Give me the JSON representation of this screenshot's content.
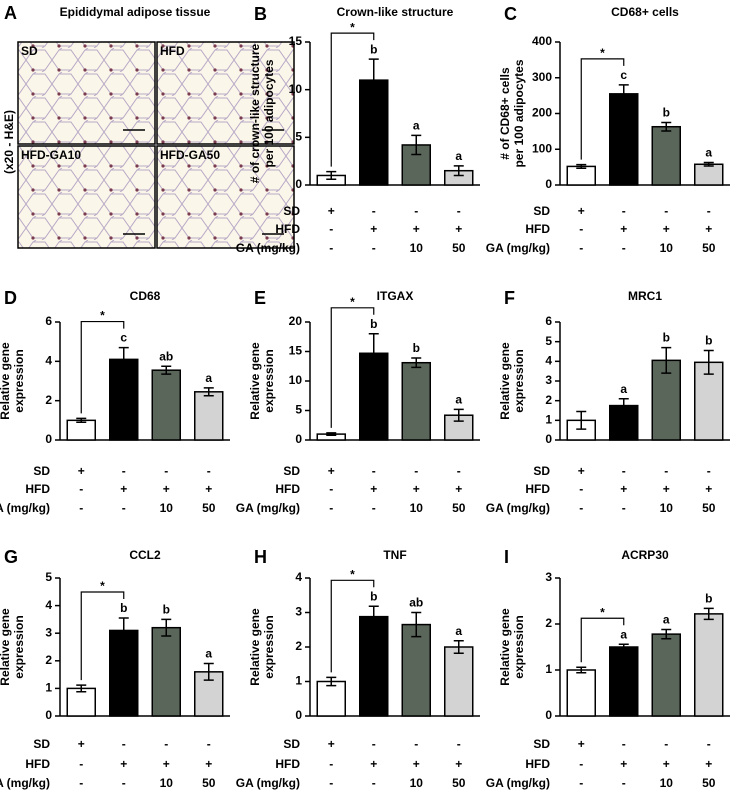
{
  "panel_a": {
    "label": "A",
    "title": "Epididymal adipose tissue",
    "side_label": "(x20 - H&E)",
    "images": [
      "SD",
      "HFD",
      "HFD-GA10",
      "HFD-GA50"
    ]
  },
  "chart_data": [
    {
      "type": "bar",
      "panel": "B",
      "title": "Crown-like structure",
      "ylabel": [
        "# of crown-like structure",
        "per 100 adipocytes"
      ],
      "ylim": [
        0,
        15
      ],
      "yticks": [
        0,
        5,
        10,
        15
      ],
      "values": [
        1,
        11,
        4.2,
        1.5
      ],
      "errors": [
        0.4,
        2.2,
        1,
        0.5
      ],
      "letters": [
        null,
        "b",
        "a",
        "a"
      ],
      "significance": "*",
      "colors": [
        "#ffffff",
        "#000000",
        "#5b665b",
        "#d3d3d3"
      ],
      "rows": [
        {
          "label": "SD",
          "cells": [
            "+",
            "-",
            "-",
            "-"
          ]
        },
        {
          "label": "HFD",
          "cells": [
            "-",
            "+",
            "+",
            "+"
          ]
        },
        {
          "label": "GA (mg/kg)",
          "cells": [
            "-",
            "-",
            "10",
            "50"
          ]
        }
      ]
    },
    {
      "type": "bar",
      "panel": "C",
      "title": "CD68+ cells",
      "ylabel": [
        "# of CD68+ cells",
        "per 100 adipocytes"
      ],
      "ylim": [
        0,
        400
      ],
      "yticks": [
        0,
        100,
        200,
        300,
        400
      ],
      "values": [
        52,
        255,
        163,
        58
      ],
      "errors": [
        5,
        25,
        12,
        5
      ],
      "letters": [
        null,
        "c",
        "b",
        "a"
      ],
      "significance": "*",
      "colors": [
        "#ffffff",
        "#000000",
        "#5b665b",
        "#d3d3d3"
      ],
      "rows": [
        {
          "label": "SD",
          "cells": [
            "+",
            "-",
            "-",
            "-"
          ]
        },
        {
          "label": "HFD",
          "cells": [
            "-",
            "+",
            "+",
            "+"
          ]
        },
        {
          "label": "GA (mg/kg)",
          "cells": [
            "-",
            "-",
            "10",
            "50"
          ]
        }
      ]
    },
    {
      "type": "bar",
      "panel": "D",
      "title": "CD68",
      "ylabel": [
        "Relative gene",
        "expression"
      ],
      "ylim": [
        0,
        6
      ],
      "yticks": [
        0,
        2,
        4,
        6
      ],
      "values": [
        1,
        4.1,
        3.55,
        2.45
      ],
      "errors": [
        0.1,
        0.6,
        0.2,
        0.2
      ],
      "letters": [
        null,
        "c",
        "ab",
        "a"
      ],
      "significance": "*",
      "colors": [
        "#ffffff",
        "#000000",
        "#5b665b",
        "#d3d3d3"
      ],
      "rows": [
        {
          "label": "SD",
          "cells": [
            "+",
            "-",
            "-",
            "-"
          ]
        },
        {
          "label": "HFD",
          "cells": [
            "-",
            "+",
            "+",
            "+"
          ]
        },
        {
          "label": "GA (mg/kg)",
          "cells": [
            "-",
            "-",
            "10",
            "50"
          ]
        }
      ]
    },
    {
      "type": "bar",
      "panel": "E",
      "title": "ITGAX",
      "ylabel": [
        "Relative gene",
        "expression"
      ],
      "ylim": [
        0,
        20
      ],
      "yticks": [
        0,
        5,
        10,
        15,
        20
      ],
      "values": [
        1,
        14.7,
        13.1,
        4.2
      ],
      "errors": [
        0.2,
        3.3,
        0.8,
        1
      ],
      "letters": [
        null,
        "b",
        "b",
        "a"
      ],
      "significance": "*",
      "colors": [
        "#ffffff",
        "#000000",
        "#5b665b",
        "#d3d3d3"
      ],
      "rows": [
        {
          "label": "SD",
          "cells": [
            "+",
            "-",
            "-",
            "-"
          ]
        },
        {
          "label": "HFD",
          "cells": [
            "-",
            "+",
            "+",
            "+"
          ]
        },
        {
          "label": "GA (mg/kg)",
          "cells": [
            "-",
            "-",
            "10",
            "50"
          ]
        }
      ]
    },
    {
      "type": "bar",
      "panel": "F",
      "title": "MRC1",
      "ylabel": [
        "Relative gene",
        "expression"
      ],
      "ylim": [
        0,
        6
      ],
      "yticks": [
        0,
        1,
        2,
        3,
        4,
        5,
        6
      ],
      "values": [
        1,
        1.75,
        4.05,
        3.95
      ],
      "errors": [
        0.45,
        0.35,
        0.65,
        0.6
      ],
      "letters": [
        null,
        "a",
        "b",
        "b"
      ],
      "colors": [
        "#ffffff",
        "#000000",
        "#5b665b",
        "#d3d3d3"
      ],
      "rows": [
        {
          "label": "SD",
          "cells": [
            "+",
            "-",
            "-",
            "-"
          ]
        },
        {
          "label": "HFD",
          "cells": [
            "-",
            "+",
            "+",
            "+"
          ]
        },
        {
          "label": "GA (mg/kg)",
          "cells": [
            "-",
            "-",
            "10",
            "50"
          ]
        }
      ]
    },
    {
      "type": "bar",
      "panel": "G",
      "title": "CCL2",
      "ylabel": [
        "Relative gene",
        "expression"
      ],
      "ylim": [
        0,
        5
      ],
      "yticks": [
        0,
        1,
        2,
        3,
        4,
        5
      ],
      "values": [
        1,
        3.1,
        3.2,
        1.6
      ],
      "errors": [
        0.12,
        0.45,
        0.3,
        0.3
      ],
      "letters": [
        null,
        "b",
        "b",
        "a"
      ],
      "significance": "*",
      "colors": [
        "#ffffff",
        "#000000",
        "#5b665b",
        "#d3d3d3"
      ],
      "rows": [
        {
          "label": "SD",
          "cells": [
            "+",
            "-",
            "-",
            "-"
          ]
        },
        {
          "label": "HFD",
          "cells": [
            "-",
            "+",
            "+",
            "+"
          ]
        },
        {
          "label": "GA (mg/kg)",
          "cells": [
            "-",
            "-",
            "10",
            "50"
          ]
        }
      ]
    },
    {
      "type": "bar",
      "panel": "H",
      "title": "TNF",
      "ylabel": [
        "Relative gene",
        "expression"
      ],
      "ylim": [
        0,
        4
      ],
      "yticks": [
        0,
        1,
        2,
        3,
        4
      ],
      "values": [
        1,
        2.88,
        2.65,
        2.0
      ],
      "errors": [
        0.12,
        0.3,
        0.35,
        0.18
      ],
      "letters": [
        null,
        "b",
        "ab",
        "a"
      ],
      "significance": "*",
      "colors": [
        "#ffffff",
        "#000000",
        "#5b665b",
        "#d3d3d3"
      ],
      "rows": [
        {
          "label": "SD",
          "cells": [
            "+",
            "-",
            "-",
            "-"
          ]
        },
        {
          "label": "HFD",
          "cells": [
            "-",
            "+",
            "+",
            "+"
          ]
        },
        {
          "label": "GA (mg/kg)",
          "cells": [
            "-",
            "-",
            "10",
            "50"
          ]
        }
      ]
    },
    {
      "type": "bar",
      "panel": "I",
      "title": "ACRP30",
      "ylabel": [
        "Relative gene",
        "expression"
      ],
      "ylim": [
        0,
        3
      ],
      "yticks": [
        0,
        1,
        2,
        3
      ],
      "values": [
        1,
        1.5,
        1.78,
        2.22
      ],
      "errors": [
        0.06,
        0.06,
        0.1,
        0.12
      ],
      "letters": [
        null,
        "a",
        "a",
        "b"
      ],
      "significance": "*",
      "colors": [
        "#ffffff",
        "#000000",
        "#5b665b",
        "#d3d3d3"
      ],
      "rows": [
        {
          "label": "SD",
          "cells": [
            "+",
            "-",
            "-",
            "-"
          ]
        },
        {
          "label": "HFD",
          "cells": [
            "-",
            "+",
            "+",
            "+"
          ]
        },
        {
          "label": "GA (mg/kg)",
          "cells": [
            "-",
            "-",
            "10",
            "50"
          ]
        }
      ]
    }
  ]
}
